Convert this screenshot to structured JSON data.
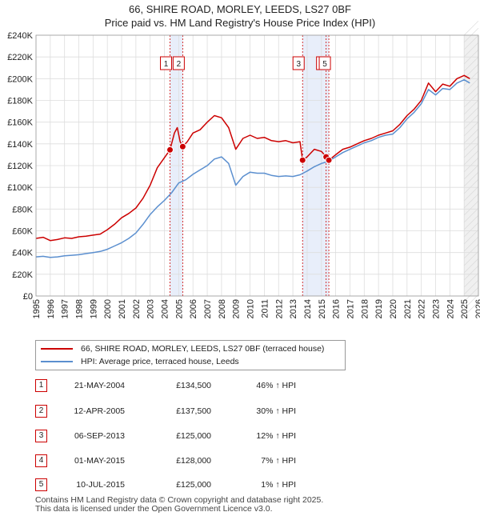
{
  "chart_data": {
    "type": "line",
    "title": "66, SHIRE ROAD, MORLEY, LEEDS, LS27 0BF",
    "subtitle": "Price paid vs. HM Land Registry's House Price Index (HPI)",
    "xlim": [
      1995,
      2026
    ],
    "ylim": [
      0,
      240000
    ],
    "x_ticks": [
      1995,
      1996,
      1997,
      1998,
      1999,
      2000,
      2001,
      2002,
      2003,
      2004,
      2005,
      2006,
      2007,
      2008,
      2009,
      2010,
      2011,
      2012,
      2013,
      2014,
      2015,
      2016,
      2017,
      2018,
      2019,
      2020,
      2021,
      2022,
      2023,
      2024,
      2025,
      2026
    ],
    "y_ticks": [
      {
        "value": 0,
        "label": "£0"
      },
      {
        "value": 20000,
        "label": "£20K"
      },
      {
        "value": 40000,
        "label": "£40K"
      },
      {
        "value": 60000,
        "label": "£60K"
      },
      {
        "value": 80000,
        "label": "£80K"
      },
      {
        "value": 100000,
        "label": "£100K"
      },
      {
        "value": 120000,
        "label": "£120K"
      },
      {
        "value": 140000,
        "label": "£140K"
      },
      {
        "value": 160000,
        "label": "£160K"
      },
      {
        "value": 180000,
        "label": "£180K"
      },
      {
        "value": 200000,
        "label": "£200K"
      },
      {
        "value": 220000,
        "label": "£220K"
      },
      {
        "value": 240000,
        "label": "£240K"
      }
    ],
    "grid": true,
    "future_shade_from": 2025.0,
    "series": [
      {
        "name": "66, SHIRE ROAD, MORLEY, LEEDS, LS27 0BF (terraced house)",
        "color": "#cc0000",
        "points": [
          [
            1995,
            53000
          ],
          [
            1995.5,
            54000
          ],
          [
            1996,
            51000
          ],
          [
            1996.5,
            52000
          ],
          [
            1997,
            53500
          ],
          [
            1997.5,
            53000
          ],
          [
            1998,
            54500
          ],
          [
            1998.5,
            55000
          ],
          [
            1999,
            56000
          ],
          [
            1999.5,
            57000
          ],
          [
            2000,
            61000
          ],
          [
            2000.5,
            66000
          ],
          [
            2001,
            72000
          ],
          [
            2001.5,
            76000
          ],
          [
            2002,
            81000
          ],
          [
            2002.5,
            90000
          ],
          [
            2003,
            102000
          ],
          [
            2003.5,
            118000
          ],
          [
            2004.39,
            134500
          ],
          [
            2004.7,
            150000
          ],
          [
            2004.9,
            155000
          ],
          [
            2005.1,
            142000
          ],
          [
            2005.28,
            137500
          ],
          [
            2005.6,
            142000
          ],
          [
            2006,
            150000
          ],
          [
            2006.5,
            153000
          ],
          [
            2007,
            160000
          ],
          [
            2007.5,
            166000
          ],
          [
            2008,
            164000
          ],
          [
            2008.5,
            155000
          ],
          [
            2009,
            135000
          ],
          [
            2009.5,
            145000
          ],
          [
            2010,
            148000
          ],
          [
            2010.5,
            145000
          ],
          [
            2011,
            146000
          ],
          [
            2011.5,
            143000
          ],
          [
            2012,
            142000
          ],
          [
            2012.5,
            143000
          ],
          [
            2013,
            141000
          ],
          [
            2013.5,
            142000
          ],
          [
            2013.68,
            125000
          ],
          [
            2014,
            128000
          ],
          [
            2014.5,
            135000
          ],
          [
            2015.0,
            133000
          ],
          [
            2015.33,
            128000
          ],
          [
            2015.52,
            125000
          ],
          [
            2016,
            130000
          ],
          [
            2016.5,
            135000
          ],
          [
            2017,
            137000
          ],
          [
            2017.5,
            140000
          ],
          [
            2018,
            143000
          ],
          [
            2018.5,
            145000
          ],
          [
            2019,
            148000
          ],
          [
            2019.5,
            150000
          ],
          [
            2020,
            152000
          ],
          [
            2020.5,
            158000
          ],
          [
            2021,
            166000
          ],
          [
            2021.5,
            172000
          ],
          [
            2022,
            180000
          ],
          [
            2022.5,
            196000
          ],
          [
            2023,
            188000
          ],
          [
            2023.5,
            195000
          ],
          [
            2024,
            193000
          ],
          [
            2024.5,
            200000
          ],
          [
            2025,
            203000
          ],
          [
            2025.4,
            200000
          ]
        ]
      },
      {
        "name": "HPI: Average price, terraced house, Leeds",
        "color": "#5b8fcf",
        "points": [
          [
            1995,
            36000
          ],
          [
            1995.5,
            36500
          ],
          [
            1996,
            35500
          ],
          [
            1996.5,
            36000
          ],
          [
            1997,
            37000
          ],
          [
            1997.5,
            37500
          ],
          [
            1998,
            38000
          ],
          [
            1998.5,
            39000
          ],
          [
            1999,
            40000
          ],
          [
            1999.5,
            41000
          ],
          [
            2000,
            43000
          ],
          [
            2000.5,
            46000
          ],
          [
            2001,
            49000
          ],
          [
            2001.5,
            53000
          ],
          [
            2002,
            58000
          ],
          [
            2002.5,
            66000
          ],
          [
            2003,
            75000
          ],
          [
            2003.5,
            82000
          ],
          [
            2004,
            88000
          ],
          [
            2004.5,
            95000
          ],
          [
            2005,
            104000
          ],
          [
            2005.5,
            107000
          ],
          [
            2006,
            112000
          ],
          [
            2006.5,
            116000
          ],
          [
            2007,
            120000
          ],
          [
            2007.5,
            126000
          ],
          [
            2008,
            128000
          ],
          [
            2008.5,
            122000
          ],
          [
            2009,
            102000
          ],
          [
            2009.5,
            110000
          ],
          [
            2010,
            114000
          ],
          [
            2010.5,
            113000
          ],
          [
            2011,
            113000
          ],
          [
            2011.5,
            111000
          ],
          [
            2012,
            110000
          ],
          [
            2012.5,
            110500
          ],
          [
            2013,
            110000
          ],
          [
            2013.5,
            111500
          ],
          [
            2014,
            115000
          ],
          [
            2014.5,
            119000
          ],
          [
            2015,
            122000
          ],
          [
            2015.5,
            124000
          ],
          [
            2016,
            128000
          ],
          [
            2016.5,
            132000
          ],
          [
            2017,
            135000
          ],
          [
            2017.5,
            138000
          ],
          [
            2018,
            141000
          ],
          [
            2018.5,
            143000
          ],
          [
            2019,
            146000
          ],
          [
            2019.5,
            148000
          ],
          [
            2020,
            149000
          ],
          [
            2020.5,
            155000
          ],
          [
            2021,
            163000
          ],
          [
            2021.5,
            169000
          ],
          [
            2022,
            177000
          ],
          [
            2022.5,
            190000
          ],
          [
            2023,
            185000
          ],
          [
            2023.5,
            191000
          ],
          [
            2024,
            190000
          ],
          [
            2024.5,
            196000
          ],
          [
            2025,
            199000
          ],
          [
            2025.4,
            196000
          ]
        ]
      }
    ],
    "sale_markers": [
      {
        "label": "1",
        "x": 2004.39,
        "price": 134500
      },
      {
        "label": "2",
        "x": 2005.28,
        "price": 137500
      },
      {
        "label": "3",
        "x": 2013.68,
        "price": 125000
      },
      {
        "label": "4",
        "x": 2015.33,
        "price": 128000
      },
      {
        "label": "5",
        "x": 2015.52,
        "price": 125000
      }
    ],
    "shade_bands": [
      [
        2004.39,
        2005.28
      ],
      [
        2013.68,
        2015.52
      ]
    ]
  },
  "legend": {
    "property_label": "66, SHIRE ROAD, MORLEY, LEEDS, LS27 0BF (terraced house)",
    "hpi_label": "HPI: Average price, terraced house, Leeds",
    "property_color": "#cc0000",
    "hpi_color": "#5b8fcf"
  },
  "sales": [
    {
      "num": "1",
      "date": "21-MAY-2004",
      "price": "£134,500",
      "hpi": "46% ↑ HPI"
    },
    {
      "num": "2",
      "date": "12-APR-2005",
      "price": "£137,500",
      "hpi": "30% ↑ HPI"
    },
    {
      "num": "3",
      "date": "06-SEP-2013",
      "price": "£125,000",
      "hpi": "12% ↑ HPI"
    },
    {
      "num": "4",
      "date": "01-MAY-2015",
      "price": "£128,000",
      "hpi": "7% ↑ HPI"
    },
    {
      "num": "5",
      "date": "10-JUL-2015",
      "price": "£125,000",
      "hpi": "1% ↑ HPI"
    }
  ],
  "footer": {
    "line1": "Contains HM Land Registry data © Crown copyright and database right 2025.",
    "line2": "This data is licensed under the Open Government Licence v3.0."
  }
}
